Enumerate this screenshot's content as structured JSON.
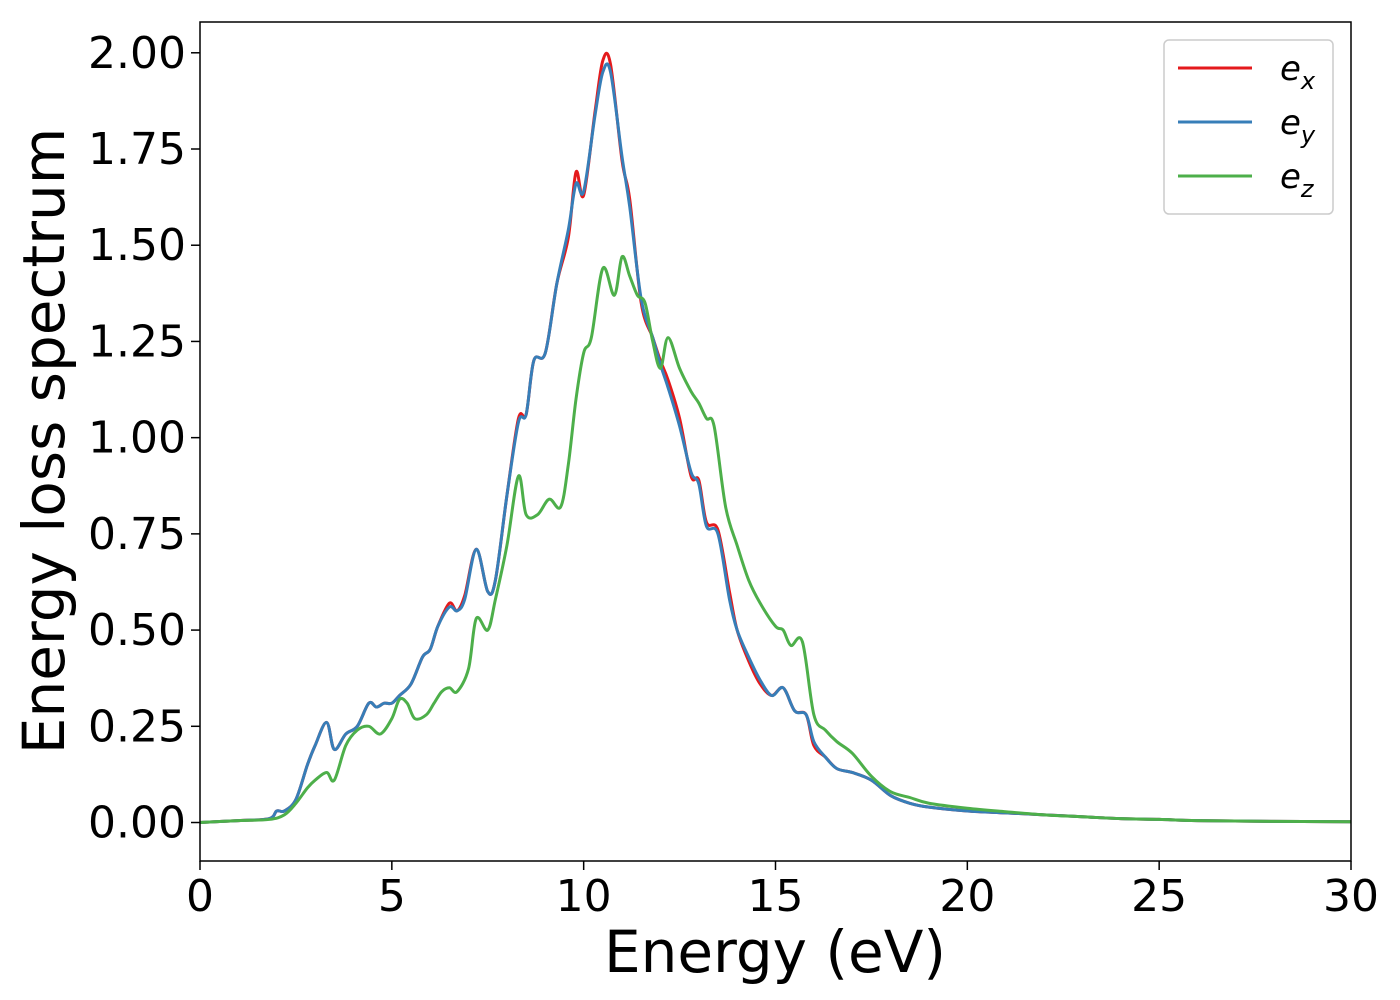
{
  "chart_data": {
    "type": "line",
    "title": "",
    "xlabel": "Energy (eV)",
    "ylabel": "Energy loss spectrum",
    "xlim": [
      0,
      30
    ],
    "ylim": [
      -0.1,
      2.08
    ],
    "xticks": [
      0,
      5,
      10,
      15,
      20,
      25,
      30
    ],
    "xtick_labels": [
      "0",
      "5",
      "10",
      "15",
      "20",
      "25",
      "30"
    ],
    "yticks": [
      0.0,
      0.25,
      0.5,
      0.75,
      1.0,
      1.25,
      1.5,
      1.75,
      2.0
    ],
    "ytick_labels": [
      "0.00",
      "0.25",
      "0.50",
      "0.75",
      "1.00",
      "1.25",
      "1.50",
      "1.75",
      "2.00"
    ],
    "grid": false,
    "legend_position": "top-right",
    "series": [
      {
        "name": "e_x",
        "label_base": "e",
        "label_sub": "x",
        "color": "#e41a1c",
        "x": [
          0,
          1,
          1.8,
          2.0,
          2.2,
          2.5,
          2.8,
          3.0,
          3.3,
          3.5,
          3.8,
          4.1,
          4.4,
          4.6,
          4.8,
          5.0,
          5.2,
          5.5,
          5.8,
          6.0,
          6.2,
          6.5,
          6.7,
          6.9,
          7.2,
          7.5,
          7.7,
          8.0,
          8.3,
          8.5,
          8.7,
          9.0,
          9.3,
          9.6,
          9.8,
          10.0,
          10.3,
          10.5,
          10.7,
          11.0,
          11.2,
          11.5,
          11.8,
          12.0,
          12.2,
          12.5,
          12.8,
          13.0,
          13.2,
          13.5,
          13.8,
          14.0,
          14.3,
          14.6,
          14.9,
          15.2,
          15.5,
          15.8,
          16.0,
          16.3,
          16.6,
          17.0,
          17.5,
          18.0,
          18.5,
          19.0,
          20.0,
          21.0,
          22.0,
          23.0,
          24.0,
          25.0,
          26.0,
          28.0,
          30.0
        ],
        "values": [
          0.0,
          0.005,
          0.01,
          0.03,
          0.03,
          0.06,
          0.15,
          0.2,
          0.26,
          0.19,
          0.23,
          0.25,
          0.31,
          0.3,
          0.31,
          0.31,
          0.33,
          0.36,
          0.43,
          0.45,
          0.51,
          0.57,
          0.55,
          0.59,
          0.71,
          0.6,
          0.63,
          0.85,
          1.05,
          1.06,
          1.2,
          1.22,
          1.4,
          1.52,
          1.69,
          1.63,
          1.85,
          1.98,
          1.97,
          1.72,
          1.62,
          1.35,
          1.26,
          1.2,
          1.15,
          1.05,
          0.9,
          0.89,
          0.78,
          0.76,
          0.6,
          0.5,
          0.42,
          0.36,
          0.33,
          0.35,
          0.29,
          0.28,
          0.2,
          0.17,
          0.14,
          0.13,
          0.11,
          0.07,
          0.05,
          0.04,
          0.03,
          0.025,
          0.02,
          0.015,
          0.01,
          0.008,
          0.005,
          0.003,
          0.002
        ]
      },
      {
        "name": "e_y",
        "label_base": "e",
        "label_sub": "y",
        "color": "#377eb8",
        "x": [
          0,
          1,
          1.8,
          2.0,
          2.2,
          2.5,
          2.8,
          3.0,
          3.3,
          3.5,
          3.8,
          4.1,
          4.4,
          4.6,
          4.8,
          5.0,
          5.2,
          5.5,
          5.8,
          6.0,
          6.2,
          6.5,
          6.7,
          6.9,
          7.2,
          7.5,
          7.7,
          8.0,
          8.3,
          8.5,
          8.7,
          9.0,
          9.3,
          9.6,
          9.8,
          10.0,
          10.3,
          10.5,
          10.7,
          11.0,
          11.2,
          11.5,
          11.8,
          12.0,
          12.2,
          12.5,
          12.8,
          13.0,
          13.2,
          13.5,
          13.8,
          14.0,
          14.3,
          14.6,
          14.9,
          15.2,
          15.5,
          15.8,
          16.0,
          16.3,
          16.6,
          17.0,
          17.5,
          18.0,
          18.5,
          19.0,
          20.0,
          21.0,
          22.0,
          23.0,
          24.0,
          25.0,
          26.0,
          28.0,
          30.0
        ],
        "values": [
          0.0,
          0.005,
          0.01,
          0.03,
          0.03,
          0.06,
          0.15,
          0.2,
          0.26,
          0.19,
          0.23,
          0.25,
          0.31,
          0.3,
          0.31,
          0.31,
          0.33,
          0.36,
          0.43,
          0.45,
          0.51,
          0.56,
          0.55,
          0.58,
          0.71,
          0.6,
          0.63,
          0.85,
          1.04,
          1.06,
          1.2,
          1.22,
          1.4,
          1.54,
          1.66,
          1.64,
          1.84,
          1.95,
          1.95,
          1.73,
          1.6,
          1.36,
          1.26,
          1.19,
          1.13,
          1.03,
          0.91,
          0.88,
          0.77,
          0.75,
          0.58,
          0.5,
          0.43,
          0.37,
          0.33,
          0.35,
          0.29,
          0.28,
          0.21,
          0.17,
          0.14,
          0.13,
          0.11,
          0.07,
          0.05,
          0.04,
          0.03,
          0.025,
          0.02,
          0.015,
          0.01,
          0.008,
          0.005,
          0.003,
          0.002
        ]
      },
      {
        "name": "e_z",
        "label_base": "e",
        "label_sub": "z",
        "color": "#4daf4a",
        "x": [
          0,
          1,
          1.8,
          2.2,
          2.5,
          2.8,
          3.0,
          3.3,
          3.5,
          3.8,
          4.1,
          4.4,
          4.7,
          5.0,
          5.2,
          5.4,
          5.6,
          5.9,
          6.1,
          6.3,
          6.5,
          6.7,
          7.0,
          7.2,
          7.5,
          7.7,
          8.0,
          8.3,
          8.5,
          8.8,
          9.1,
          9.4,
          9.6,
          9.8,
          10.0,
          10.2,
          10.5,
          10.8,
          11.0,
          11.2,
          11.4,
          11.6,
          11.8,
          12.0,
          12.2,
          12.5,
          12.8,
          13.0,
          13.2,
          13.4,
          13.7,
          14.0,
          14.3,
          14.6,
          15.0,
          15.2,
          15.4,
          15.7,
          16.0,
          16.3,
          16.6,
          17.0,
          17.5,
          18.0,
          18.5,
          19.0,
          20.0,
          21.0,
          22.0,
          23.0,
          24.0,
          25.0,
          26.0,
          28.0,
          30.0
        ],
        "values": [
          0.0,
          0.005,
          0.008,
          0.02,
          0.05,
          0.09,
          0.11,
          0.13,
          0.11,
          0.2,
          0.24,
          0.25,
          0.23,
          0.27,
          0.32,
          0.31,
          0.27,
          0.28,
          0.31,
          0.34,
          0.35,
          0.34,
          0.4,
          0.53,
          0.5,
          0.58,
          0.72,
          0.9,
          0.8,
          0.8,
          0.84,
          0.82,
          0.93,
          1.1,
          1.22,
          1.26,
          1.44,
          1.37,
          1.47,
          1.42,
          1.37,
          1.35,
          1.25,
          1.18,
          1.26,
          1.18,
          1.12,
          1.09,
          1.05,
          1.03,
          0.82,
          0.72,
          0.63,
          0.57,
          0.51,
          0.5,
          0.46,
          0.47,
          0.28,
          0.24,
          0.21,
          0.18,
          0.12,
          0.08,
          0.065,
          0.05,
          0.037,
          0.028,
          0.02,
          0.015,
          0.01,
          0.008,
          0.005,
          0.003,
          0.002
        ]
      }
    ]
  }
}
